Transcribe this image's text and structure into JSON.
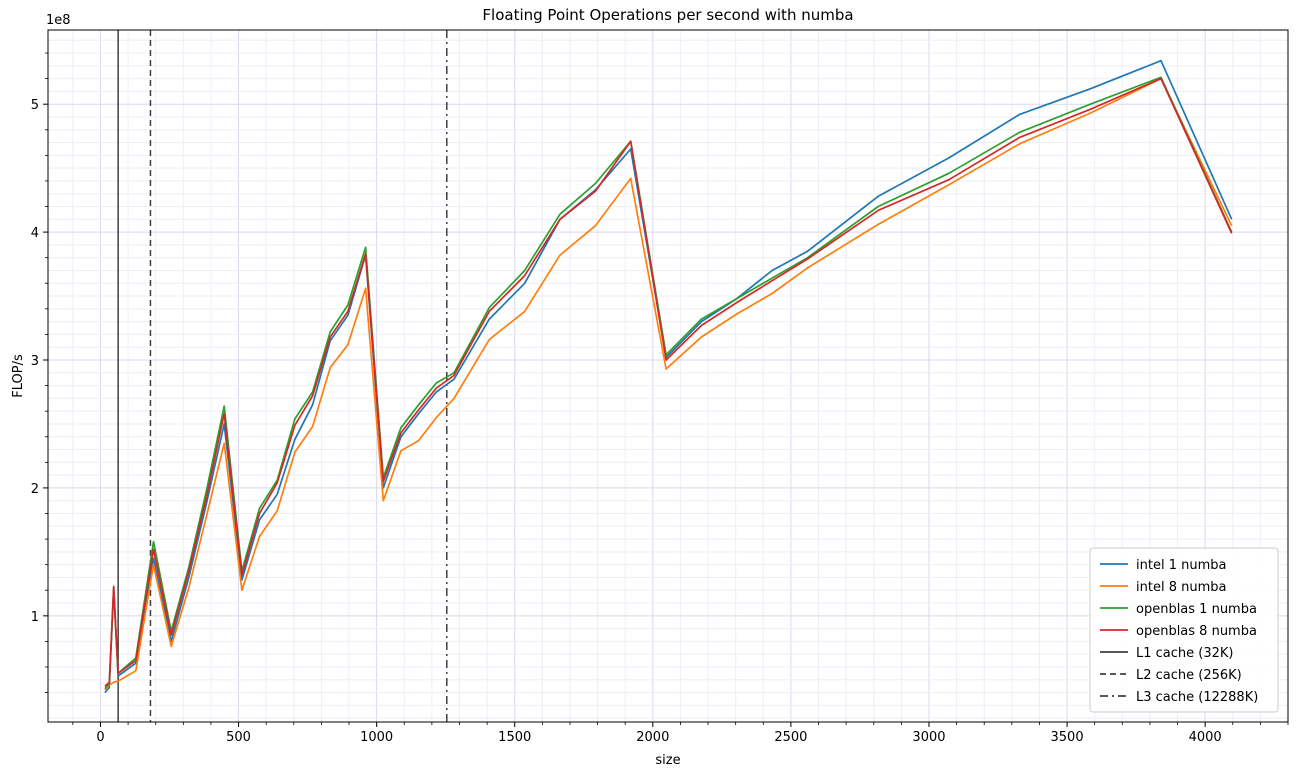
{
  "chart_data": {
    "type": "line",
    "title": "Floating Point Operations per second with numba",
    "xlabel": "size",
    "ylabel": "FLOP/s",
    "y_offset_label": "1e8",
    "xlim": [
      -190,
      4300
    ],
    "ylim": [
      0.17,
      5.58
    ],
    "y_scale_exponent": 8,
    "x_ticks": [
      0,
      500,
      1000,
      1500,
      2000,
      2500,
      3000,
      3500,
      4000
    ],
    "y_ticks": [
      1,
      2,
      3,
      4,
      5
    ],
    "grid": true,
    "legend_position": "lower-right",
    "colors": {
      "intel1": "#1f77b4",
      "intel8": "#ff7f0e",
      "openblas1": "#2ca02c",
      "openblas8": "#d62728",
      "cache": "#404040",
      "major_grid": "#d8d8f0",
      "minor_grid": "#eeeef8"
    },
    "series": [
      {
        "name": "intel 1 numba",
        "color": "#1f77b4",
        "x": [
          16,
          32,
          48,
          64,
          128,
          192,
          256,
          320,
          384,
          448,
          512,
          576,
          640,
          704,
          768,
          832,
          896,
          960,
          1024,
          1088,
          1152,
          1216,
          1280,
          1408,
          1536,
          1664,
          1792,
          1920,
          2048,
          2176,
          2304,
          2432,
          2560,
          2816,
          3072,
          3328,
          3584,
          3840,
          4096
        ],
        "y": [
          0.4,
          0.44,
          1.22,
          0.53,
          0.63,
          1.45,
          0.8,
          1.3,
          1.88,
          2.5,
          1.28,
          1.75,
          1.95,
          2.38,
          2.65,
          3.15,
          3.35,
          3.82,
          2.0,
          2.4,
          2.58,
          2.75,
          2.85,
          3.32,
          3.6,
          4.1,
          4.33,
          4.65,
          3.02,
          3.3,
          3.48,
          3.7,
          3.85,
          4.28,
          4.58,
          4.92,
          5.12,
          5.34,
          4.1
        ]
      },
      {
        "name": "intel 8 numba",
        "color": "#ff7f0e",
        "x": [
          16,
          32,
          48,
          64,
          128,
          192,
          256,
          320,
          384,
          448,
          512,
          576,
          640,
          704,
          768,
          832,
          896,
          960,
          1024,
          1088,
          1152,
          1216,
          1280,
          1408,
          1536,
          1664,
          1792,
          1920,
          2048,
          2176,
          2304,
          2432,
          2560,
          2816,
          3072,
          3328,
          3584,
          3840,
          4096
        ],
        "y": [
          0.42,
          0.46,
          0.48,
          0.49,
          0.57,
          1.4,
          0.76,
          1.22,
          1.78,
          2.35,
          1.2,
          1.62,
          1.82,
          2.28,
          2.48,
          2.94,
          3.12,
          3.56,
          1.9,
          2.29,
          2.37,
          2.55,
          2.7,
          3.16,
          3.38,
          3.82,
          4.05,
          4.42,
          2.93,
          3.18,
          3.36,
          3.52,
          3.72,
          4.06,
          4.37,
          4.69,
          4.93,
          5.2,
          4.05
        ]
      },
      {
        "name": "openblas 1 numba",
        "color": "#2ca02c",
        "x": [
          16,
          32,
          48,
          64,
          128,
          192,
          256,
          320,
          384,
          448,
          512,
          576,
          640,
          704,
          768,
          832,
          896,
          960,
          1024,
          1088,
          1152,
          1216,
          1280,
          1408,
          1536,
          1664,
          1792,
          1920,
          2048,
          2176,
          2304,
          2432,
          2560,
          2816,
          3072,
          3328,
          3584,
          3840,
          4096
        ],
        "y": [
          0.43,
          0.47,
          1.2,
          0.55,
          0.67,
          1.58,
          0.88,
          1.38,
          1.98,
          2.64,
          1.35,
          1.84,
          2.06,
          2.54,
          2.75,
          3.22,
          3.43,
          3.88,
          2.08,
          2.47,
          2.65,
          2.82,
          2.9,
          3.41,
          3.7,
          4.14,
          4.38,
          4.71,
          3.04,
          3.32,
          3.48,
          3.64,
          3.8,
          4.2,
          4.46,
          4.78,
          5.0,
          5.21,
          4.0
        ]
      },
      {
        "name": "openblas 8 numba",
        "color": "#d62728",
        "x": [
          16,
          32,
          48,
          64,
          128,
          192,
          256,
          320,
          384,
          448,
          512,
          576,
          640,
          704,
          768,
          832,
          896,
          960,
          1024,
          1088,
          1152,
          1216,
          1280,
          1408,
          1536,
          1664,
          1792,
          1920,
          2048,
          2176,
          2304,
          2432,
          2560,
          2816,
          3072,
          3328,
          3584,
          3840,
          4096
        ],
        "y": [
          0.45,
          0.48,
          1.23,
          0.55,
          0.65,
          1.52,
          0.85,
          1.35,
          1.93,
          2.58,
          1.32,
          1.8,
          2.04,
          2.49,
          2.72,
          3.18,
          3.38,
          3.83,
          2.05,
          2.43,
          2.61,
          2.78,
          2.88,
          3.38,
          3.66,
          4.1,
          4.32,
          4.71,
          3.0,
          3.27,
          3.45,
          3.62,
          3.79,
          4.17,
          4.41,
          4.74,
          4.96,
          5.2,
          3.99
        ]
      }
    ],
    "reference_lines": [
      {
        "name": "L1 cache (32K)",
        "x": 64,
        "style": "solid"
      },
      {
        "name": "L2 cache (256K)",
        "x": 181,
        "style": "dashed"
      },
      {
        "name": "L3 cache (12288K)",
        "x": 1254,
        "style": "dashdot"
      }
    ]
  }
}
